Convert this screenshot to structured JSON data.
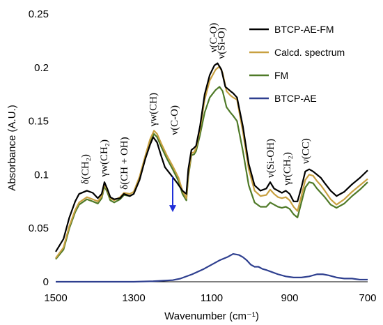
{
  "chart_data": {
    "type": "line",
    "xlabel": "Wavenumber (cm⁻¹)",
    "ylabel": "Absorbance (A.U.)",
    "xlim": [
      1500,
      700
    ],
    "x_reversed": true,
    "ylim": [
      0,
      0.25
    ],
    "xticks": [
      "1500",
      "1300",
      "1100",
      "900",
      "700"
    ],
    "yticks": [
      "0",
      "0.05",
      "0.1",
      "0.15",
      "0.2",
      "0.25"
    ],
    "grid": false,
    "legend_position": "top-right",
    "series": [
      {
        "name": "BTCP-AE-FM",
        "color": "#000000",
        "points": [
          [
            1500,
            0.028
          ],
          [
            1480,
            0.04
          ],
          [
            1465,
            0.06
          ],
          [
            1450,
            0.075
          ],
          [
            1440,
            0.082
          ],
          [
            1420,
            0.085
          ],
          [
            1405,
            0.083
          ],
          [
            1392,
            0.078
          ],
          [
            1382,
            0.082
          ],
          [
            1375,
            0.093
          ],
          [
            1368,
            0.087
          ],
          [
            1360,
            0.079
          ],
          [
            1350,
            0.077
          ],
          [
            1335,
            0.078
          ],
          [
            1325,
            0.082
          ],
          [
            1310,
            0.08
          ],
          [
            1300,
            0.082
          ],
          [
            1285,
            0.095
          ],
          [
            1270,
            0.115
          ],
          [
            1258,
            0.128
          ],
          [
            1250,
            0.135
          ],
          [
            1240,
            0.13
          ],
          [
            1230,
            0.118
          ],
          [
            1220,
            0.107
          ],
          [
            1205,
            0.1
          ],
          [
            1190,
            0.093
          ],
          [
            1175,
            0.085
          ],
          [
            1165,
            0.082
          ],
          [
            1160,
            0.105
          ],
          [
            1152,
            0.123
          ],
          [
            1145,
            0.125
          ],
          [
            1140,
            0.127
          ],
          [
            1130,
            0.145
          ],
          [
            1118,
            0.175
          ],
          [
            1105,
            0.193
          ],
          [
            1093,
            0.202
          ],
          [
            1085,
            0.204
          ],
          [
            1075,
            0.198
          ],
          [
            1065,
            0.182
          ],
          [
            1052,
            0.178
          ],
          [
            1045,
            0.176
          ],
          [
            1035,
            0.172
          ],
          [
            1020,
            0.145
          ],
          [
            1005,
            0.11
          ],
          [
            990,
            0.09
          ],
          [
            975,
            0.085
          ],
          [
            960,
            0.087
          ],
          [
            950,
            0.093
          ],
          [
            940,
            0.087
          ],
          [
            930,
            0.085
          ],
          [
            920,
            0.083
          ],
          [
            910,
            0.085
          ],
          [
            900,
            0.082
          ],
          [
            890,
            0.075
          ],
          [
            880,
            0.075
          ],
          [
            870,
            0.088
          ],
          [
            860,
            0.103
          ],
          [
            850,
            0.105
          ],
          [
            840,
            0.103
          ],
          [
            830,
            0.1
          ],
          [
            820,
            0.097
          ],
          [
            810,
            0.092
          ],
          [
            795,
            0.085
          ],
          [
            780,
            0.08
          ],
          [
            760,
            0.084
          ],
          [
            740,
            0.091
          ],
          [
            720,
            0.097
          ],
          [
            700,
            0.104
          ]
        ]
      },
      {
        "name": "Calcd. spectrum",
        "color": "#c8a040",
        "points": [
          [
            1500,
            0.022
          ],
          [
            1480,
            0.032
          ],
          [
            1465,
            0.052
          ],
          [
            1450,
            0.067
          ],
          [
            1440,
            0.074
          ],
          [
            1420,
            0.079
          ],
          [
            1405,
            0.077
          ],
          [
            1392,
            0.075
          ],
          [
            1382,
            0.08
          ],
          [
            1375,
            0.091
          ],
          [
            1368,
            0.086
          ],
          [
            1360,
            0.078
          ],
          [
            1350,
            0.076
          ],
          [
            1335,
            0.079
          ],
          [
            1325,
            0.083
          ],
          [
            1310,
            0.082
          ],
          [
            1300,
            0.084
          ],
          [
            1285,
            0.098
          ],
          [
            1270,
            0.118
          ],
          [
            1258,
            0.133
          ],
          [
            1248,
            0.141
          ],
          [
            1240,
            0.138
          ],
          [
            1228,
            0.128
          ],
          [
            1215,
            0.118
          ],
          [
            1200,
            0.108
          ],
          [
            1185,
            0.097
          ],
          [
            1175,
            0.085
          ],
          [
            1165,
            0.078
          ],
          [
            1160,
            0.1
          ],
          [
            1152,
            0.12
          ],
          [
            1145,
            0.121
          ],
          [
            1140,
            0.125
          ],
          [
            1130,
            0.142
          ],
          [
            1118,
            0.17
          ],
          [
            1105,
            0.188
          ],
          [
            1090,
            0.198
          ],
          [
            1080,
            0.201
          ],
          [
            1072,
            0.195
          ],
          [
            1062,
            0.178
          ],
          [
            1052,
            0.174
          ],
          [
            1045,
            0.172
          ],
          [
            1035,
            0.17
          ],
          [
            1020,
            0.14
          ],
          [
            1005,
            0.105
          ],
          [
            990,
            0.085
          ],
          [
            975,
            0.08
          ],
          [
            960,
            0.081
          ],
          [
            950,
            0.086
          ],
          [
            940,
            0.082
          ],
          [
            930,
            0.079
          ],
          [
            920,
            0.078
          ],
          [
            910,
            0.079
          ],
          [
            900,
            0.076
          ],
          [
            890,
            0.07
          ],
          [
            880,
            0.066
          ],
          [
            870,
            0.08
          ],
          [
            860,
            0.095
          ],
          [
            850,
            0.1
          ],
          [
            840,
            0.099
          ],
          [
            830,
            0.094
          ],
          [
            820,
            0.09
          ],
          [
            810,
            0.085
          ],
          [
            795,
            0.077
          ],
          [
            780,
            0.072
          ],
          [
            760,
            0.077
          ],
          [
            740,
            0.084
          ],
          [
            720,
            0.09
          ],
          [
            700,
            0.096
          ]
        ]
      },
      {
        "name": "FM",
        "color": "#4f7a28",
        "points": [
          [
            1500,
            0.021
          ],
          [
            1480,
            0.03
          ],
          [
            1465,
            0.05
          ],
          [
            1450,
            0.065
          ],
          [
            1440,
            0.072
          ],
          [
            1420,
            0.077
          ],
          [
            1405,
            0.075
          ],
          [
            1392,
            0.073
          ],
          [
            1382,
            0.078
          ],
          [
            1375,
            0.089
          ],
          [
            1368,
            0.084
          ],
          [
            1360,
            0.076
          ],
          [
            1350,
            0.074
          ],
          [
            1335,
            0.077
          ],
          [
            1325,
            0.081
          ],
          [
            1310,
            0.08
          ],
          [
            1300,
            0.082
          ],
          [
            1285,
            0.096
          ],
          [
            1270,
            0.116
          ],
          [
            1258,
            0.13
          ],
          [
            1248,
            0.138
          ],
          [
            1240,
            0.135
          ],
          [
            1228,
            0.125
          ],
          [
            1215,
            0.115
          ],
          [
            1200,
            0.105
          ],
          [
            1185,
            0.094
          ],
          [
            1175,
            0.082
          ],
          [
            1165,
            0.076
          ],
          [
            1160,
            0.098
          ],
          [
            1152,
            0.118
          ],
          [
            1145,
            0.119
          ],
          [
            1140,
            0.122
          ],
          [
            1130,
            0.137
          ],
          [
            1118,
            0.158
          ],
          [
            1105,
            0.172
          ],
          [
            1090,
            0.179
          ],
          [
            1080,
            0.182
          ],
          [
            1072,
            0.178
          ],
          [
            1062,
            0.163
          ],
          [
            1052,
            0.158
          ],
          [
            1045,
            0.155
          ],
          [
            1035,
            0.15
          ],
          [
            1020,
            0.122
          ],
          [
            1005,
            0.09
          ],
          [
            990,
            0.074
          ],
          [
            975,
            0.07
          ],
          [
            960,
            0.07
          ],
          [
            950,
            0.074
          ],
          [
            940,
            0.072
          ],
          [
            930,
            0.07
          ],
          [
            920,
            0.069
          ],
          [
            910,
            0.07
          ],
          [
            900,
            0.068
          ],
          [
            890,
            0.063
          ],
          [
            880,
            0.06
          ],
          [
            870,
            0.074
          ],
          [
            860,
            0.088
          ],
          [
            850,
            0.093
          ],
          [
            840,
            0.092
          ],
          [
            830,
            0.087
          ],
          [
            820,
            0.083
          ],
          [
            810,
            0.079
          ],
          [
            795,
            0.072
          ],
          [
            780,
            0.069
          ],
          [
            760,
            0.073
          ],
          [
            740,
            0.08
          ],
          [
            720,
            0.086
          ],
          [
            700,
            0.093
          ]
        ]
      },
      {
        "name": "BTCP-AE",
        "color": "#2e3f8f",
        "points": [
          [
            1500,
            0.0
          ],
          [
            1400,
            0.0
          ],
          [
            1300,
            0.0
          ],
          [
            1250,
            0.0005
          ],
          [
            1200,
            0.0015
          ],
          [
            1180,
            0.003
          ],
          [
            1150,
            0.007
          ],
          [
            1120,
            0.012
          ],
          [
            1100,
            0.016
          ],
          [
            1080,
            0.02
          ],
          [
            1060,
            0.023
          ],
          [
            1045,
            0.026
          ],
          [
            1030,
            0.025
          ],
          [
            1020,
            0.023
          ],
          [
            1010,
            0.02
          ],
          [
            1000,
            0.016
          ],
          [
            990,
            0.014
          ],
          [
            980,
            0.014
          ],
          [
            970,
            0.012
          ],
          [
            960,
            0.011
          ],
          [
            945,
            0.009
          ],
          [
            930,
            0.007
          ],
          [
            910,
            0.005
          ],
          [
            890,
            0.004
          ],
          [
            870,
            0.004
          ],
          [
            850,
            0.005
          ],
          [
            830,
            0.007
          ],
          [
            815,
            0.007
          ],
          [
            800,
            0.006
          ],
          [
            780,
            0.004
          ],
          [
            760,
            0.003
          ],
          [
            740,
            0.003
          ],
          [
            720,
            0.002
          ],
          [
            700,
            0.002
          ]
        ]
      }
    ],
    "annotations": [
      {
        "text": "δ(CH₂)",
        "x": 1425,
        "y": 0.091
      },
      {
        "text": "γw(CH₂)",
        "x": 1377,
        "y": 0.098
      },
      {
        "text": "δ(CH + OH)",
        "x": 1325,
        "y": 0.086
      },
      {
        "text": "γw(CH)",
        "x": 1251,
        "y": 0.145
      },
      {
        "text": "ν(C-O)",
        "x": 1196,
        "y": 0.137
      },
      {
        "text": "ν(C-O)",
        "x": 1096,
        "y": 0.214
      },
      {
        "text": "ν(Si-O)",
        "x": 1076,
        "y": 0.208
      },
      {
        "text": "ν(Si-OH)",
        "x": 950,
        "y": 0.097
      },
      {
        "text": "γr(CH₂)",
        "x": 907,
        "y": 0.09
      },
      {
        "text": "ν(CC)",
        "x": 860,
        "y": 0.11
      }
    ],
    "arrow": {
      "x": 1200,
      "y_start": 0.098,
      "y_end": 0.065,
      "color": "#1f2fd8"
    }
  }
}
